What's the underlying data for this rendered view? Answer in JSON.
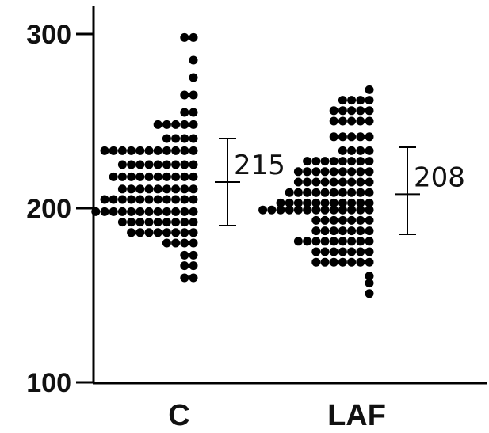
{
  "chart_data": {
    "type": "scatter",
    "subtype": "dot-plot",
    "title": "",
    "xlabel": "",
    "ylabel": "",
    "categories": [
      "C",
      "LAF"
    ],
    "yticks": [
      100,
      200,
      300
    ],
    "ylim": [
      100,
      300
    ],
    "grid": false,
    "legend": "none",
    "dot_color": "#000000",
    "series": [
      {
        "category": "C",
        "summary": {
          "mean": 215,
          "mean_label": "215",
          "lower": 190,
          "upper": 240
        },
        "bins": [
          {
            "y": 298,
            "count": 2,
            "extent": "right"
          },
          {
            "y": 285,
            "count": 1,
            "extent": "right"
          },
          {
            "y": 275,
            "count": 1,
            "extent": "right"
          },
          {
            "y": 265,
            "count": 2,
            "extent": "right"
          },
          {
            "y": 255,
            "count": 2,
            "extent": "right"
          },
          {
            "y": 248,
            "count": 5,
            "extent": "right"
          },
          {
            "y": 240,
            "count": 4,
            "extent": "right"
          },
          {
            "y": 233,
            "count": 11,
            "extent": "right"
          },
          {
            "y": 225,
            "count": 9,
            "extent": "right"
          },
          {
            "y": 218,
            "count": 10,
            "extent": "right"
          },
          {
            "y": 211,
            "count": 9,
            "extent": "right"
          },
          {
            "y": 205,
            "count": 11,
            "extent": "right"
          },
          {
            "y": 198,
            "count": 12,
            "extent": "right"
          },
          {
            "y": 192,
            "count": 9,
            "extent": "right"
          },
          {
            "y": 186,
            "count": 8,
            "extent": "right"
          },
          {
            "y": 180,
            "count": 4,
            "extent": "right"
          },
          {
            "y": 173,
            "count": 2,
            "extent": "right"
          },
          {
            "y": 167,
            "count": 2,
            "extent": "right"
          },
          {
            "y": 160,
            "count": 2,
            "extent": "right"
          }
        ]
      },
      {
        "category": "LAF",
        "summary": {
          "mean": 208,
          "mean_label": "208",
          "lower": 185,
          "upper": 235
        },
        "bins": [
          {
            "y": 268,
            "count": 1,
            "extent": "right"
          },
          {
            "y": 262,
            "count": 4,
            "extent": "right"
          },
          {
            "y": 256,
            "count": 5,
            "extent": "right"
          },
          {
            "y": 250,
            "count": 5,
            "extent": "right"
          },
          {
            "y": 241,
            "count": 5,
            "extent": "right"
          },
          {
            "y": 233,
            "count": 4,
            "extent": "right"
          },
          {
            "y": 227,
            "count": 8,
            "extent": "right"
          },
          {
            "y": 221,
            "count": 9,
            "extent": "right"
          },
          {
            "y": 215,
            "count": 9,
            "extent": "right"
          },
          {
            "y": 209,
            "count": 10,
            "extent": "right"
          },
          {
            "y": 203,
            "count": 11,
            "extent": "right"
          },
          {
            "y": 199,
            "count": 13,
            "extent": "right"
          },
          {
            "y": 193,
            "count": 7,
            "extent": "right"
          },
          {
            "y": 187,
            "count": 7,
            "extent": "right"
          },
          {
            "y": 181,
            "count": 9,
            "extent": "right"
          },
          {
            "y": 175,
            "count": 7,
            "extent": "right"
          },
          {
            "y": 169,
            "count": 7,
            "extent": "right"
          },
          {
            "y": 161,
            "count": 1,
            "extent": "right"
          },
          {
            "y": 157,
            "count": 1,
            "extent": "right"
          },
          {
            "y": 151,
            "count": 1,
            "extent": "right"
          }
        ]
      }
    ]
  }
}
